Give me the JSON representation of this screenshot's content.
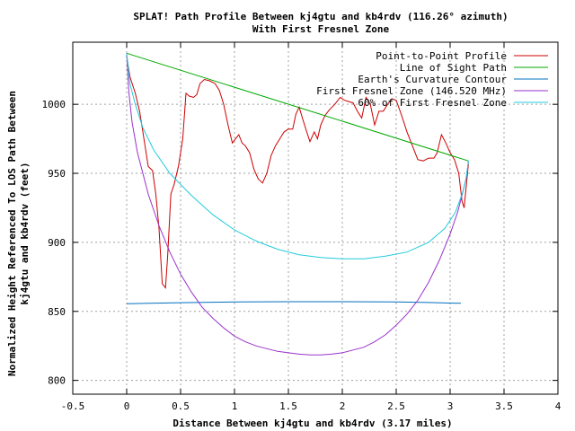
{
  "chart_data": {
    "type": "line",
    "title": "SPLAT! Path Profile Between kj4gtu and kb4rdv (116.26° azimuth)",
    "subtitle": "With First Fresnel Zone",
    "xlabel": "Distance Between kj4gtu and kb4rdv (3.17 miles)",
    "ylabel_line1": "Normalized Height Referenced To LOS Path Between",
    "ylabel_line2": "kj4gtu and kb4rdv (feet)",
    "xlim": [
      -0.5,
      4
    ],
    "ylim": [
      790,
      1045
    ],
    "x_ticks": [
      -0.5,
      0,
      0.5,
      1,
      1.5,
      2,
      2.5,
      3,
      3.5,
      4
    ],
    "x_tick_labels": [
      "-0.5",
      "0",
      "0.5",
      "1",
      "1.5",
      "2",
      "2.5",
      "3",
      "3.5",
      "4"
    ],
    "y_ticks": [
      800,
      850,
      900,
      950,
      1000
    ],
    "y_tick_labels": [
      "800",
      "850",
      "900",
      "950",
      "1000"
    ],
    "grid": true,
    "legend_position": "top-right",
    "series": [
      {
        "name": "Point-to-Point Profile",
        "color": "#cc0000",
        "points": [
          [
            0.0,
            1035
          ],
          [
            0.03,
            1020
          ],
          [
            0.08,
            1008
          ],
          [
            0.12,
            995
          ],
          [
            0.16,
            975
          ],
          [
            0.2,
            955
          ],
          [
            0.24,
            952
          ],
          [
            0.27,
            935
          ],
          [
            0.3,
            910
          ],
          [
            0.33,
            870
          ],
          [
            0.36,
            867
          ],
          [
            0.38,
            890
          ],
          [
            0.41,
            935
          ],
          [
            0.44,
            942
          ],
          [
            0.48,
            955
          ],
          [
            0.52,
            975
          ],
          [
            0.55,
            1008
          ],
          [
            0.58,
            1006
          ],
          [
            0.62,
            1005
          ],
          [
            0.65,
            1007
          ],
          [
            0.68,
            1015
          ],
          [
            0.72,
            1018
          ],
          [
            0.77,
            1017
          ],
          [
            0.82,
            1015
          ],
          [
            0.86,
            1010
          ],
          [
            0.9,
            1000
          ],
          [
            0.94,
            985
          ],
          [
            0.98,
            972
          ],
          [
            1.01,
            975
          ],
          [
            1.04,
            978
          ],
          [
            1.07,
            972
          ],
          [
            1.1,
            970
          ],
          [
            1.14,
            965
          ],
          [
            1.18,
            953
          ],
          [
            1.22,
            946
          ],
          [
            1.26,
            943
          ],
          [
            1.3,
            950
          ],
          [
            1.34,
            963
          ],
          [
            1.38,
            970
          ],
          [
            1.42,
            975
          ],
          [
            1.46,
            980
          ],
          [
            1.5,
            982
          ],
          [
            1.54,
            982
          ],
          [
            1.57,
            993
          ],
          [
            1.6,
            998
          ],
          [
            1.63,
            990
          ],
          [
            1.67,
            980
          ],
          [
            1.7,
            973
          ],
          [
            1.74,
            980
          ],
          [
            1.77,
            975
          ],
          [
            1.8,
            985
          ],
          [
            1.84,
            992
          ],
          [
            1.88,
            996
          ],
          [
            1.93,
            1000
          ],
          [
            1.98,
            1005
          ],
          [
            2.02,
            1003
          ],
          [
            2.06,
            1002
          ],
          [
            2.1,
            1001
          ],
          [
            2.14,
            995
          ],
          [
            2.18,
            990
          ],
          [
            2.22,
            1005
          ],
          [
            2.26,
            1000
          ],
          [
            2.3,
            985
          ],
          [
            2.34,
            995
          ],
          [
            2.38,
            995
          ],
          [
            2.42,
            1000
          ],
          [
            2.46,
            1004
          ],
          [
            2.5,
            1003
          ],
          [
            2.55,
            992
          ],
          [
            2.6,
            980
          ],
          [
            2.65,
            970
          ],
          [
            2.7,
            960
          ],
          [
            2.75,
            959
          ],
          [
            2.8,
            961
          ],
          [
            2.85,
            961
          ],
          [
            2.88,
            965
          ],
          [
            2.92,
            978
          ],
          [
            2.96,
            972
          ],
          [
            3.0,
            965
          ],
          [
            3.04,
            960
          ],
          [
            3.08,
            950
          ],
          [
            3.11,
            930
          ],
          [
            3.13,
            925
          ],
          [
            3.17,
            957
          ]
        ]
      },
      {
        "name": "Line of Sight Path",
        "color": "#00aa00",
        "points": [
          [
            0.0,
            1037
          ],
          [
            3.17,
            959
          ]
        ]
      },
      {
        "name": "Earth's Curvature Contour",
        "color": "#0070c0",
        "points": [
          [
            0.0,
            855.5
          ],
          [
            0.5,
            856.3
          ],
          [
            1.0,
            856.8
          ],
          [
            1.5,
            857.0
          ],
          [
            2.0,
            857.0
          ],
          [
            2.5,
            856.8
          ],
          [
            2.8,
            856.4
          ],
          [
            3.1,
            855.8
          ]
        ]
      },
      {
        "name": "First Fresnel Zone (146.520 MHz)",
        "color": "#9a32cd",
        "points": [
          [
            0.0,
            1037
          ],
          [
            0.02,
            1009
          ],
          [
            0.05,
            987
          ],
          [
            0.1,
            965
          ],
          [
            0.2,
            935
          ],
          [
            0.3,
            912
          ],
          [
            0.4,
            893
          ],
          [
            0.5,
            877
          ],
          [
            0.6,
            864
          ],
          [
            0.7,
            853
          ],
          [
            0.8,
            845
          ],
          [
            0.9,
            838
          ],
          [
            1.0,
            832
          ],
          [
            1.1,
            828
          ],
          [
            1.2,
            825
          ],
          [
            1.3,
            823
          ],
          [
            1.4,
            821
          ],
          [
            1.5,
            820
          ],
          [
            1.6,
            819
          ],
          [
            1.7,
            818.5
          ],
          [
            1.8,
            818.5
          ],
          [
            1.9,
            819
          ],
          [
            2.0,
            820
          ],
          [
            2.1,
            822
          ],
          [
            2.2,
            824
          ],
          [
            2.3,
            828
          ],
          [
            2.4,
            833
          ],
          [
            2.5,
            840
          ],
          [
            2.6,
            848
          ],
          [
            2.7,
            858
          ],
          [
            2.8,
            871
          ],
          [
            2.9,
            887
          ],
          [
            3.0,
            906
          ],
          [
            3.07,
            922
          ],
          [
            3.12,
            937
          ],
          [
            3.15,
            947
          ],
          [
            3.17,
            959
          ]
        ]
      },
      {
        "name": "60% of First Fresnel Zone",
        "color": "#22ccdd",
        "points": [
          [
            0.0,
            1037
          ],
          [
            0.03,
            1015
          ],
          [
            0.08,
            1000
          ],
          [
            0.15,
            983
          ],
          [
            0.25,
            967
          ],
          [
            0.4,
            950
          ],
          [
            0.6,
            934
          ],
          [
            0.8,
            920
          ],
          [
            1.0,
            909
          ],
          [
            1.2,
            901
          ],
          [
            1.4,
            895
          ],
          [
            1.6,
            891
          ],
          [
            1.8,
            889
          ],
          [
            2.0,
            888
          ],
          [
            2.2,
            888
          ],
          [
            2.4,
            890
          ],
          [
            2.6,
            893
          ],
          [
            2.8,
            900
          ],
          [
            2.95,
            910
          ],
          [
            3.05,
            922
          ],
          [
            3.12,
            937
          ],
          [
            3.15,
            947
          ],
          [
            3.17,
            959
          ]
        ]
      }
    ]
  }
}
